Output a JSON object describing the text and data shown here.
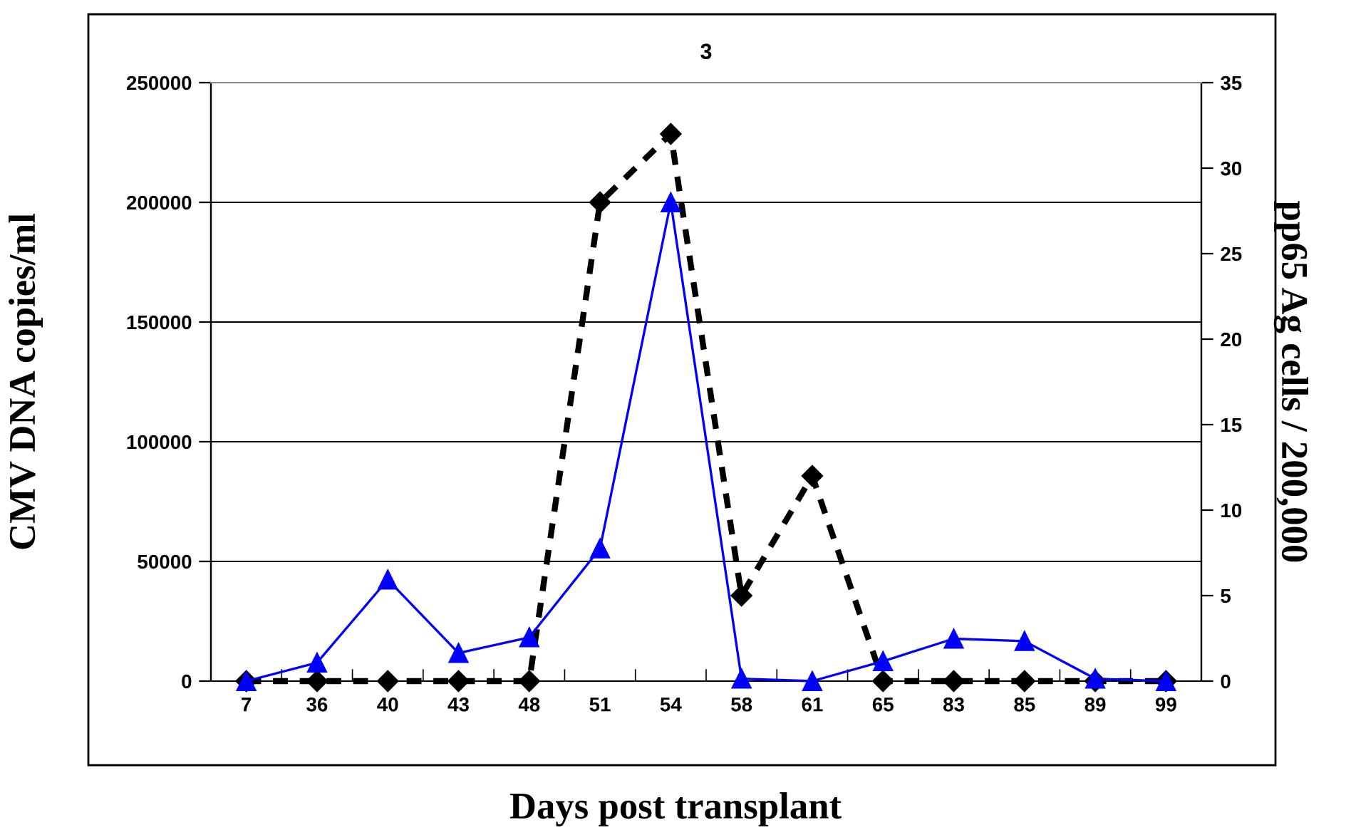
{
  "chart_data": {
    "type": "line",
    "title": "3",
    "xlabel": "Days post transplant",
    "ylabel": "CMV DNA copies/ml",
    "y2label": "pp65 Ag cells / 200,000",
    "categories": [
      "7",
      "36",
      "40",
      "43",
      "48",
      "51",
      "54",
      "58",
      "61",
      "65",
      "83",
      "85",
      "89",
      "99"
    ],
    "series": [
      {
        "color": "#0000ff",
        "marker": "triangle",
        "line_style": "solid",
        "axis": "y",
        "values": [
          0,
          7700,
          42400,
          11700,
          18300,
          55400,
          200000,
          1000,
          0,
          8300,
          17700,
          16700,
          1000,
          0
        ]
      },
      {
        "color": "#000000",
        "marker": "diamond",
        "line_style": "dashed",
        "axis": "y2",
        "values": [
          0,
          0,
          0,
          0,
          0,
          28,
          32,
          5,
          12,
          0,
          0,
          0,
          0,
          0
        ]
      }
    ],
    "ylim": [
      0,
      250000
    ],
    "yticks": [
      0,
      50000,
      100000,
      150000,
      200000,
      250000
    ],
    "y2lim": [
      0,
      35
    ],
    "y2ticks": [
      0,
      5,
      10,
      15,
      20,
      25,
      30,
      35
    ],
    "grid": "y",
    "legend": false
  }
}
